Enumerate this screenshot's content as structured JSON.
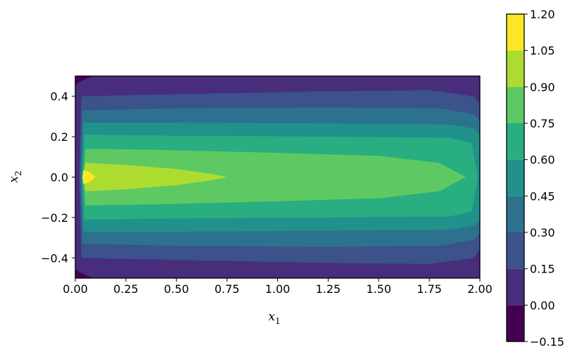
{
  "chart_data": {
    "type": "heatmap",
    "subtype": "filled-contour",
    "title": "",
    "xlabel": "x",
    "xlabel_sub": "1",
    "ylabel": "x",
    "ylabel_sub": "2",
    "xlim": [
      0.0,
      2.0
    ],
    "ylim": [
      -0.5,
      0.5
    ],
    "x_ticks": [
      "0.00",
      "0.25",
      "0.50",
      "0.75",
      "1.00",
      "1.25",
      "1.50",
      "1.75",
      "2.00"
    ],
    "y_ticks": [
      "−0.4",
      "−0.2",
      "0.0",
      "0.2",
      "0.4"
    ],
    "colorbar": {
      "levels": [
        -0.15,
        0.0,
        0.15,
        0.3,
        0.45,
        0.6,
        0.75,
        0.9,
        1.05,
        1.2
      ],
      "tick_labels": [
        "−0.15",
        "0.00",
        "0.15",
        "0.30",
        "0.45",
        "0.60",
        "0.75",
        "0.90",
        "1.05",
        "1.20"
      ],
      "colors": [
        "#440154",
        "#472d7b",
        "#3b528b",
        "#2c728e",
        "#21918c",
        "#28ae80",
        "#5ec962",
        "#addc30",
        "#fde725"
      ]
    },
    "contour_boundaries": [
      {
        "level": 0.9,
        "half_width": [
          [
            0.03,
            0.07
          ],
          [
            0.1,
            0.1
          ],
          [
            0.75,
            0.0
          ]
        ]
      },
      {
        "level": 0.75,
        "half_width": [
          [
            0.03,
            0.14
          ],
          [
            0.05,
            0.14
          ],
          [
            0.25,
            0.13
          ],
          [
            1.0,
            0.11
          ],
          [
            1.75,
            0.1
          ],
          [
            1.93,
            0.0
          ]
        ]
      },
      {
        "level": 0.6,
        "half_width": [
          [
            0.03,
            0.21
          ],
          [
            0.5,
            0.2
          ],
          [
            1.5,
            0.19
          ],
          [
            1.95,
            0.17
          ],
          [
            1.99,
            0.0
          ]
        ]
      },
      {
        "level": 0.45,
        "half_width": [
          [
            0.03,
            0.27
          ],
          [
            0.5,
            0.27
          ],
          [
            1.5,
            0.26
          ],
          [
            1.98,
            0.24
          ]
        ]
      },
      {
        "level": 0.3,
        "half_width": [
          [
            0.03,
            0.33
          ],
          [
            0.5,
            0.34
          ],
          [
            1.5,
            0.34
          ],
          [
            1.98,
            0.3
          ]
        ]
      },
      {
        "level": 0.15,
        "half_width": [
          [
            0.03,
            0.4
          ],
          [
            0.5,
            0.41
          ],
          [
            1.5,
            0.43
          ],
          [
            1.98,
            0.38
          ]
        ]
      },
      {
        "level": 0.0,
        "corners": true
      }
    ]
  }
}
